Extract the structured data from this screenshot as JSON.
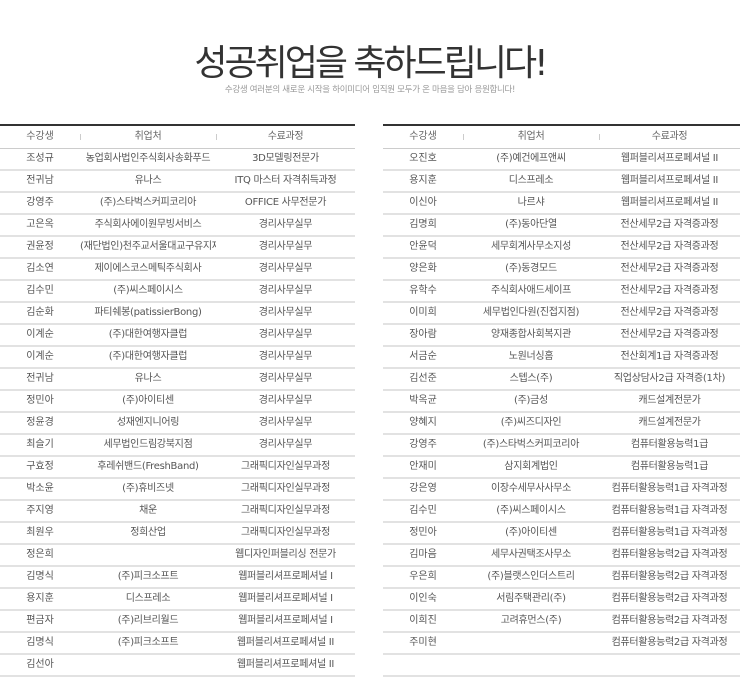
{
  "header": {
    "title": "성공취업을 축하드립니다!",
    "subtitle": "수강생 여러분의 새로운 시작을 하이미디어 임직원 모두가 온 마음을 담아 응원합니다!"
  },
  "columns": [
    "수강생",
    "취업처",
    "수료과정"
  ],
  "left_table": [
    [
      "조성규",
      "농업회사법인주식회사송화푸드",
      "3D모델링전문가"
    ],
    [
      "전귀남",
      "유나스",
      "ITQ 마스터 자격취득과정"
    ],
    [
      "강영주",
      "(주)스타벅스커피코리아",
      "OFFICE 사무전문가"
    ],
    [
      "고은옥",
      "주식회사에이원무빙서비스",
      "경리사무실무"
    ],
    [
      "권윤정",
      "(재단법인)천주교서울대교구유지재단",
      "경리사무실무"
    ],
    [
      "김소연",
      "제이에스코스메틱주식회사",
      "경리사무실무"
    ],
    [
      "김수민",
      "(주)씨스페이시스",
      "경리사무실무"
    ],
    [
      "김순화",
      "파티쉐봉(patissierBong)",
      "경리사무실무"
    ],
    [
      "이계순",
      "(주)대한여행자클럽",
      "경리사무실무"
    ],
    [
      "이계순",
      "(주)대한여행자클럽",
      "경리사무실무"
    ],
    [
      "전귀남",
      "유나스",
      "경리사무실무"
    ],
    [
      "정민아",
      "(주)아이티센",
      "경리사무실무"
    ],
    [
      "정윤경",
      "성재엔지니어링",
      "경리사무실무"
    ],
    [
      "최슬기",
      "세무법인드림강북지점",
      "경리사무실무"
    ],
    [
      "구효정",
      "후레쉬밴드(FreshBand)",
      "그래픽디자인실무과정"
    ],
    [
      "박소윤",
      "(주)휴비즈넷",
      "그래픽디자인실무과정"
    ],
    [
      "주지영",
      "채운",
      "그래픽디자인실무과정"
    ],
    [
      "최원우",
      "정희산업",
      "그래픽디자인실무과정"
    ],
    [
      "정은희",
      "",
      "웹디자인퍼블리싱 전문가"
    ],
    [
      "김명식",
      "(주)피크소프트",
      "웹퍼블리셔프로페셔널 I"
    ],
    [
      "용지훈",
      "디스프레소",
      "웹퍼블리셔프로페셔널 I"
    ],
    [
      "편금자",
      "(주)리브리월드",
      "웹퍼블리셔프로페셔널 I"
    ],
    [
      "김명식",
      "(주)피크소프트",
      "웹퍼블리셔프로페셔널 II"
    ],
    [
      "김선아",
      "",
      "웹퍼블리셔프로페셔널 II"
    ]
  ],
  "right_table": [
    [
      "오진호",
      "(주)예건에프앤씨",
      "웹퍼블리셔프로페셔널 II"
    ],
    [
      "용지훈",
      "디스프레소",
      "웹퍼블리셔프로페셔널 II"
    ],
    [
      "이신아",
      "나르샤",
      "웹퍼블리셔프로페셔널 II"
    ],
    [
      "김명희",
      "(주)동아단열",
      "전산세무2급 자격증과정"
    ],
    [
      "안윤덕",
      "세무회계사무소지성",
      "전산세무2급 자격증과정"
    ],
    [
      "양은화",
      "(주)동경모드",
      "전산세무2급 자격증과정"
    ],
    [
      "유학수",
      "주식회사애드세이프",
      "전산세무2급 자격증과정"
    ],
    [
      "이미희",
      "세무법인다원(진접지점)",
      "전산세무2급 자격증과정"
    ],
    [
      "장아람",
      "양재종합사회복지관",
      "전산세무2급 자격증과정"
    ],
    [
      "서금순",
      "노원너싱홈",
      "전산회계1급 자격증과정"
    ],
    [
      "김선준",
      "스텝스(주)",
      "직업상담사2급 자격증(1차)"
    ],
    [
      "박옥균",
      "(주)금성",
      "캐드설계전문가"
    ],
    [
      "양혜지",
      "(주)씨즈디자인",
      "캐드설계전문가"
    ],
    [
      "강영주",
      "(주)스타벅스커피코리아",
      "컴퓨터활용능력1급"
    ],
    [
      "안재미",
      "삼지회계법인",
      "컴퓨터활용능력1급"
    ],
    [
      "강은영",
      "이장수세무사사무소",
      "컴퓨터활용능력1급 자격과정"
    ],
    [
      "김수민",
      "(주)씨스페이시스",
      "컴퓨터활용능력1급 자격과정"
    ],
    [
      "정민아",
      "(주)아이티센",
      "컴퓨터활용능력1급 자격과정"
    ],
    [
      "김마음",
      "세무사권택조사무소",
      "컴퓨터활용능력2급 자격과정"
    ],
    [
      "우은희",
      "(주)블랫스인더스트리",
      "컴퓨터활용능력2급 자격과정"
    ],
    [
      "이인숙",
      "서림주택관리(주)",
      "컴퓨터활용능력2급 자격과정"
    ],
    [
      "이희진",
      "고려휴먼스(주)",
      "컴퓨터활용능력2급 자격과정"
    ],
    [
      "주미현",
      "",
      "컴퓨터활용능력2급 자격과정"
    ],
    [
      "",
      "",
      ""
    ]
  ]
}
